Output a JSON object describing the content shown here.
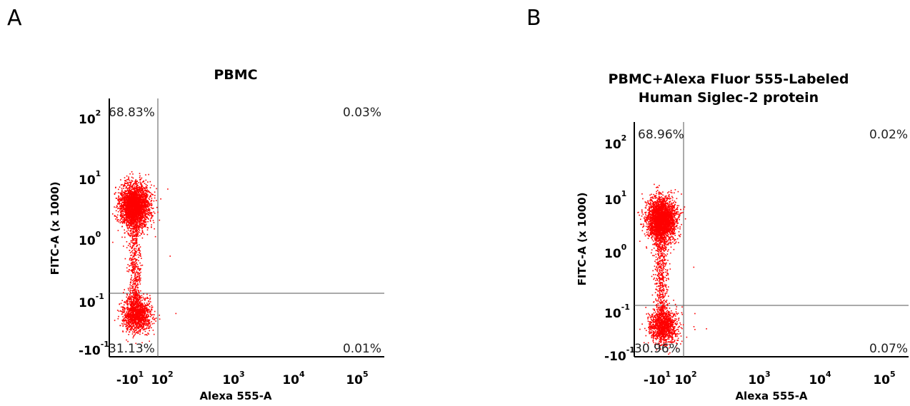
{
  "panels": {
    "A": {
      "letter": "A",
      "title": "PBMC",
      "xlabel": "Alexa 555-A",
      "ylabel": "FITC-A (x 1000)",
      "quadrants": {
        "ul": "68.83%",
        "ur": "0.03%",
        "ll": "31.13%",
        "lr": "0.01%"
      }
    },
    "B": {
      "letter": "B",
      "title_line1": "PBMC+Alexa Fluor 555-Labeled",
      "title_line2": "Human Siglec-2 protein",
      "xlabel": "Alexa 555-A",
      "ylabel": "FITC-A (x 1000)",
      "quadrants": {
        "ul": "68.96%",
        "ur": "0.02%",
        "ll": "30.96%",
        "lr": "0.07%"
      }
    }
  },
  "chart_data": [
    {
      "type": "scatter",
      "title": "PBMC",
      "xlabel": "Alexa 555-A",
      "ylabel": "FITC-A (x 1000)",
      "x_scale": "logicle",
      "y_scale": "logicle",
      "x_ticks": [
        {
          "base": "-10",
          "exp": "1"
        },
        {
          "base": "10",
          "exp": "2"
        },
        {
          "base": "10",
          "exp": "3"
        },
        {
          "base": "10",
          "exp": "4"
        },
        {
          "base": "10",
          "exp": "5"
        }
      ],
      "y_ticks": [
        {
          "base": "-10",
          "exp": "-1"
        },
        {
          "base": "10",
          "exp": "-1"
        },
        {
          "base": "10",
          "exp": "0"
        },
        {
          "base": "10",
          "exp": "1"
        },
        {
          "base": "10",
          "exp": "2"
        }
      ],
      "populations": [
        {
          "name": "upper-left",
          "percent": 68.83
        },
        {
          "name": "lower-left",
          "percent": 31.13
        },
        {
          "name": "upper-right",
          "percent": 0.03
        },
        {
          "name": "lower-right",
          "percent": 0.01
        }
      ],
      "color": "#ff0000"
    },
    {
      "type": "scatter",
      "title": "PBMC+Alexa Fluor 555-Labeled Human Siglec-2 protein",
      "xlabel": "Alexa 555-A",
      "ylabel": "FITC-A (x 1000)",
      "x_scale": "logicle",
      "y_scale": "logicle",
      "x_ticks": [
        {
          "base": "-10",
          "exp": "1"
        },
        {
          "base": "10",
          "exp": "2"
        },
        {
          "base": "10",
          "exp": "3"
        },
        {
          "base": "10",
          "exp": "4"
        },
        {
          "base": "10",
          "exp": "5"
        }
      ],
      "y_ticks": [
        {
          "base": "-10",
          "exp": "-1"
        },
        {
          "base": "10",
          "exp": "-1"
        },
        {
          "base": "10",
          "exp": "0"
        },
        {
          "base": "10",
          "exp": "1"
        },
        {
          "base": "10",
          "exp": "2"
        }
      ],
      "populations": [
        {
          "name": "upper-left",
          "percent": 68.96
        },
        {
          "name": "lower-left",
          "percent": 30.96
        },
        {
          "name": "upper-right",
          "percent": 0.02
        },
        {
          "name": "lower-right",
          "percent": 0.07
        }
      ],
      "color": "#ff0000"
    }
  ]
}
